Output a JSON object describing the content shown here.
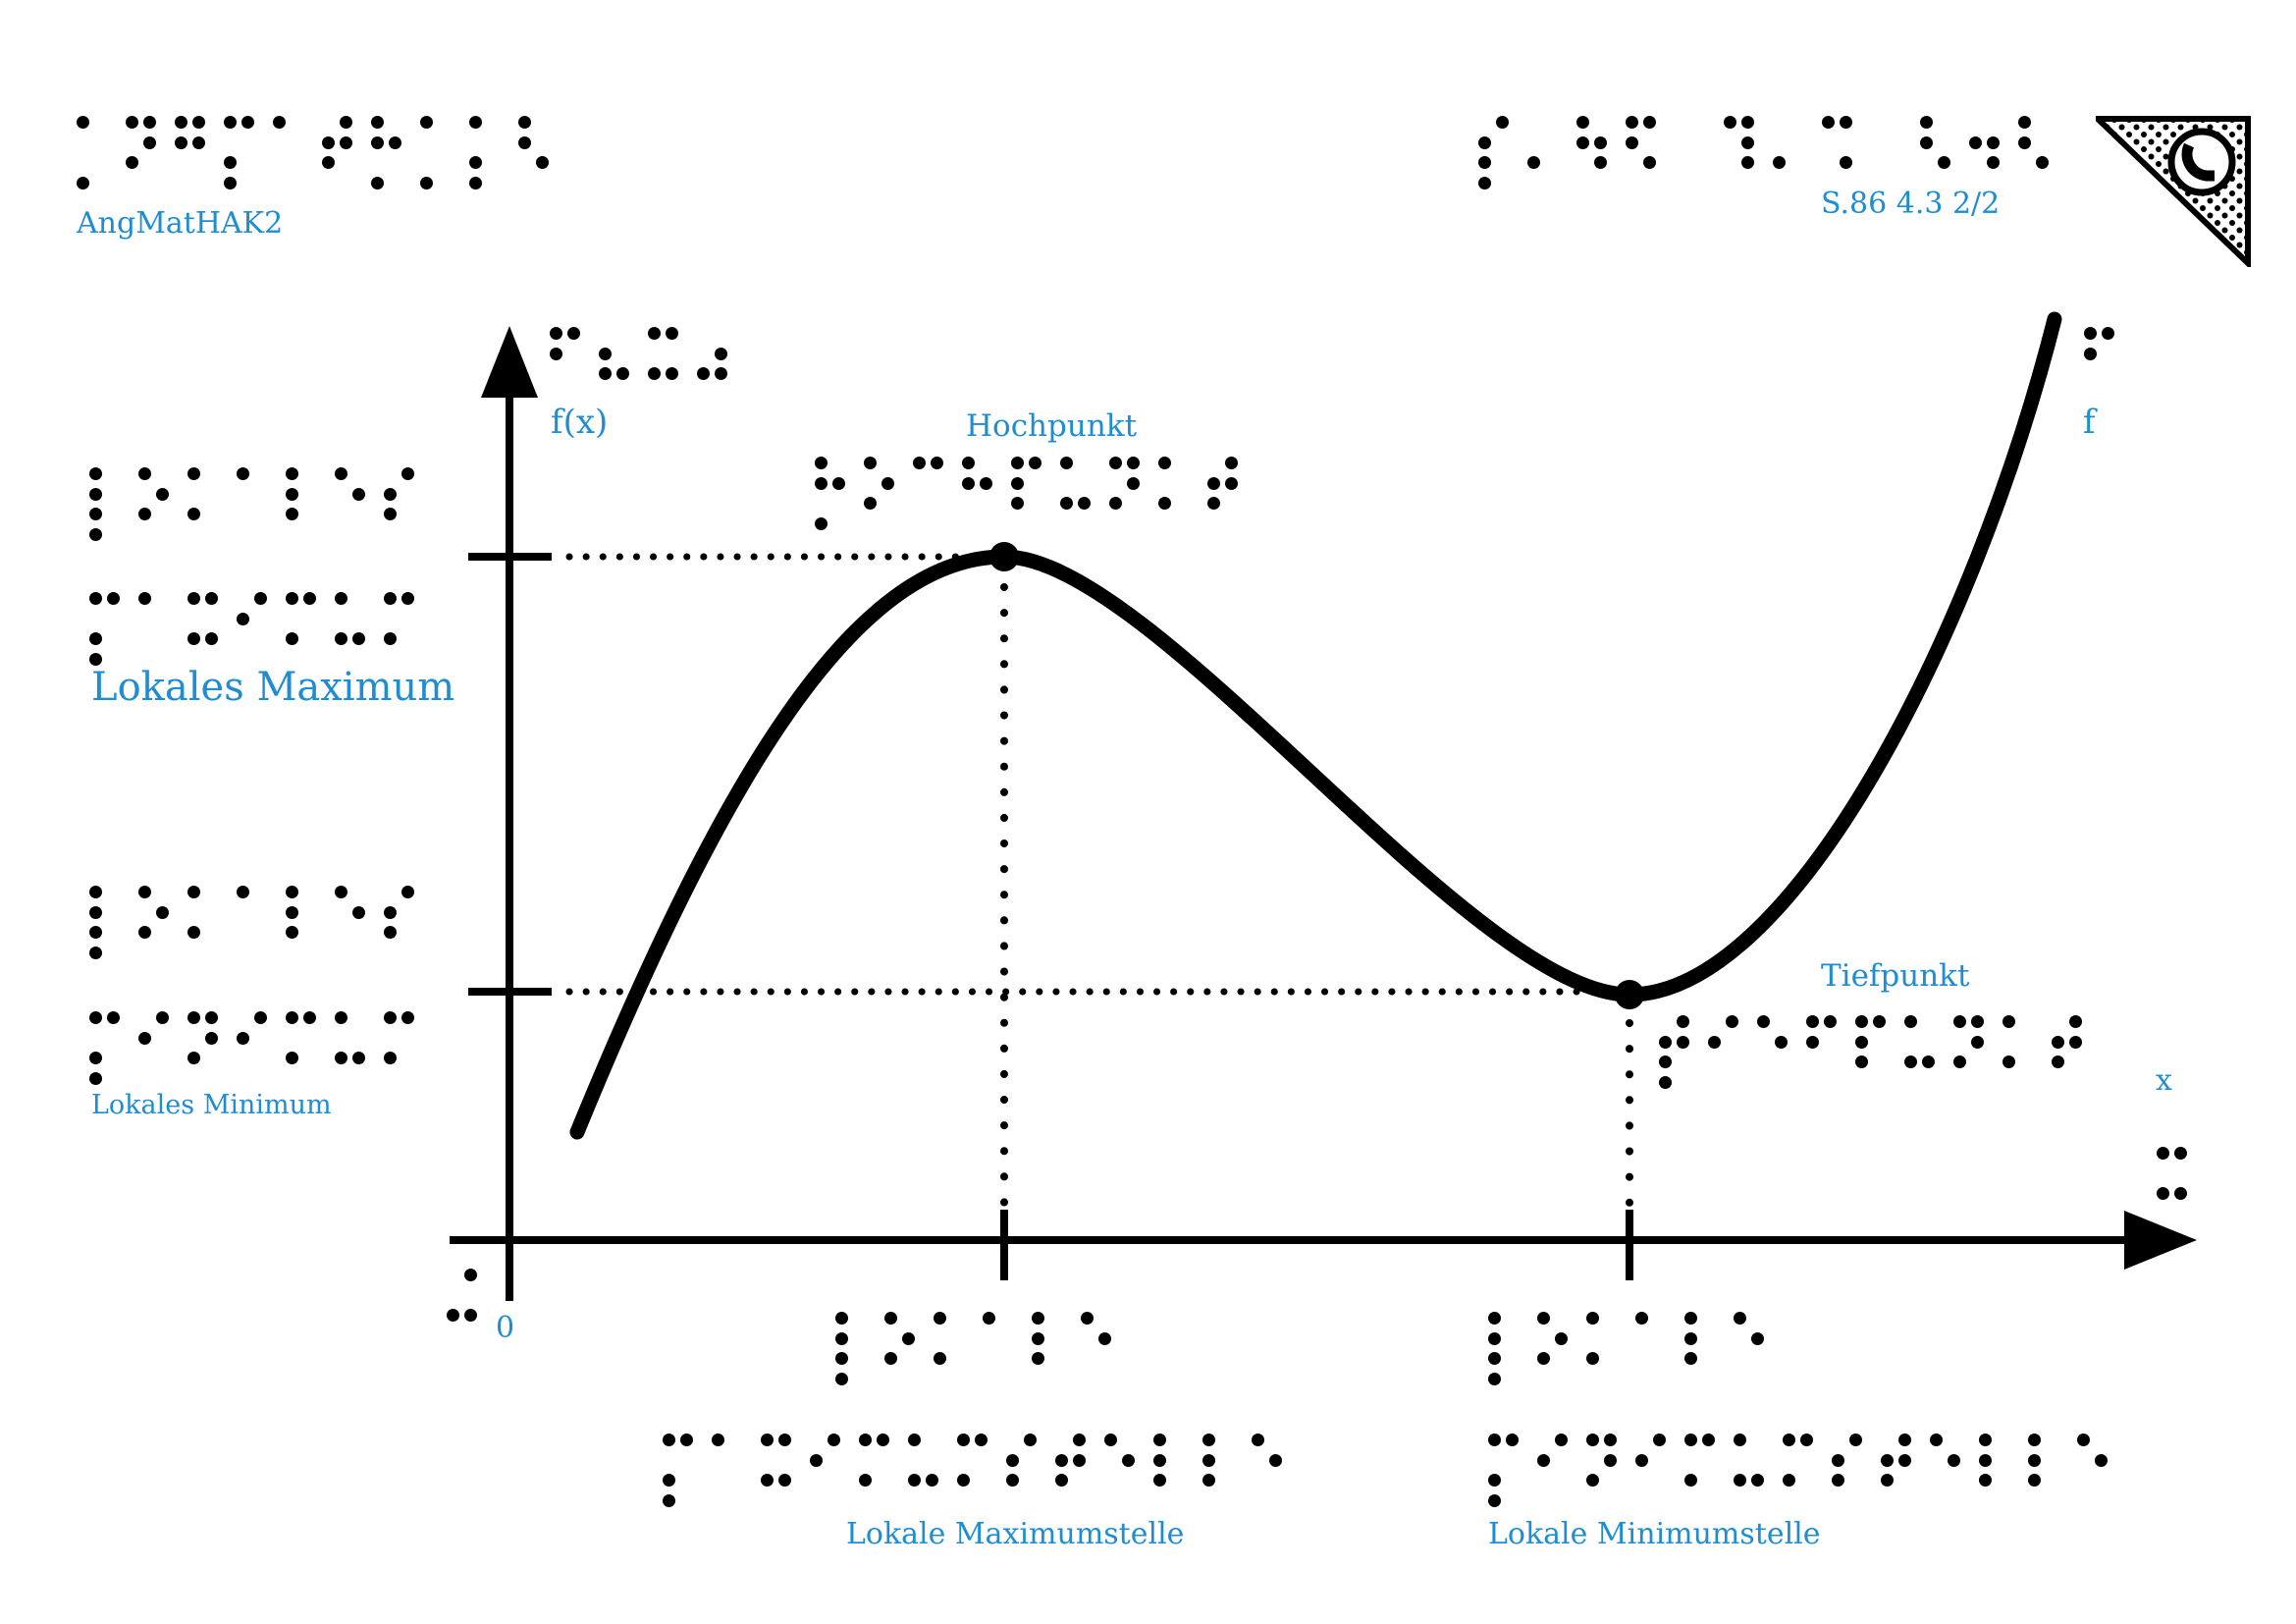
{
  "colors": {
    "accent": "#1f8dd1",
    "ink": "#000000",
    "background": "#ffffff"
  },
  "header": {
    "course_code": {
      "braille": "⡁⠝⠛⡍⠁⠞⡓⡁⡅⠣",
      "label": "AngMatHAK2"
    },
    "page_ref": {
      "braille": "⡎⠄⠳⠫ ⠹⠄⠩ ⠣⠲⠣",
      "label": "S.86 4.3 2/2"
    },
    "logo": "tactile-publisher-triangle-logo"
  },
  "chart": {
    "y_axis": {
      "braille": "⠋⠦⠭⠴",
      "label": "f(x)"
    },
    "x_axis": {
      "braille": "⠭",
      "label": "x"
    },
    "origin": {
      "braille": "⠬",
      "label": "0"
    },
    "curve": {
      "braille": "⠋",
      "label": "f"
    },
    "annotations": {
      "hochpunkt": {
        "braille": "⡓⠕⠉⠓⠏⠥⠝⠅⠞",
        "label": "Hochpunkt"
      },
      "tiefpunkt": {
        "braille": "⡞⠊⠑⠋⠏⠥⠝⠅⠞",
        "label": "Tiefpunkt"
      },
      "lokales_maximum": {
        "braille_line1": "⡇⠕⠅⠁⠇⠑⠎",
        "braille_line2": "⡍⠁⠭⠊⠍⠥⠍",
        "label": "Lokales Maximum"
      },
      "lokales_minimum": {
        "braille_line1": "⡇⠕⠅⠁⠇⠑⠎",
        "braille_line2": "⡍⠊⠝⠊⠍⠥⠍",
        "label": "Lokales Minimum"
      },
      "lokale_maximumstelle": {
        "braille_line1": "⡇⠕⠅⠁⠇⠑",
        "braille_line2": "⡍⠁⠭⠊⠍⠥⠍⠎⠞⠑⠇⠇⠑",
        "label": "Lokale Maximumstelle"
      },
      "lokale_minimumstelle": {
        "braille_line1": "⡇⠕⠅⠁⠇⠑",
        "braille_line2": "⡍⠊⠝⠊⠍⠥⠍⠎⠞⠑⠇⠇⠑",
        "label": "Lokale Minimumstelle"
      }
    }
  },
  "chart_data": {
    "type": "line",
    "title": "",
    "xlabel": "x",
    "ylabel": "f(x)",
    "grid": false,
    "axis_numeric_labels": false,
    "series": [
      {
        "name": "f",
        "points": [
          [
            0.4,
            0.63
          ],
          [
            1.5,
            2.9
          ],
          [
            2.9,
            4.0
          ],
          [
            4.5,
            3.1
          ],
          [
            6.56,
            1.44
          ],
          [
            8.0,
            2.6
          ],
          [
            9.05,
            5.4
          ]
        ]
      }
    ],
    "key_points": {
      "local_maximum": [
        2.9,
        4.0
      ],
      "local_minimum": [
        6.56,
        1.44
      ]
    },
    "tick_marks": {
      "y_axis_at": [
        4.0,
        1.44
      ],
      "x_axis_at": [
        2.9,
        6.56
      ]
    },
    "annotations": [
      "Hochpunkt",
      "Tiefpunkt",
      "Lokales Maximum",
      "Lokales Minimum",
      "Lokale Maximumstelle",
      "Lokale Minimumstelle"
    ]
  }
}
